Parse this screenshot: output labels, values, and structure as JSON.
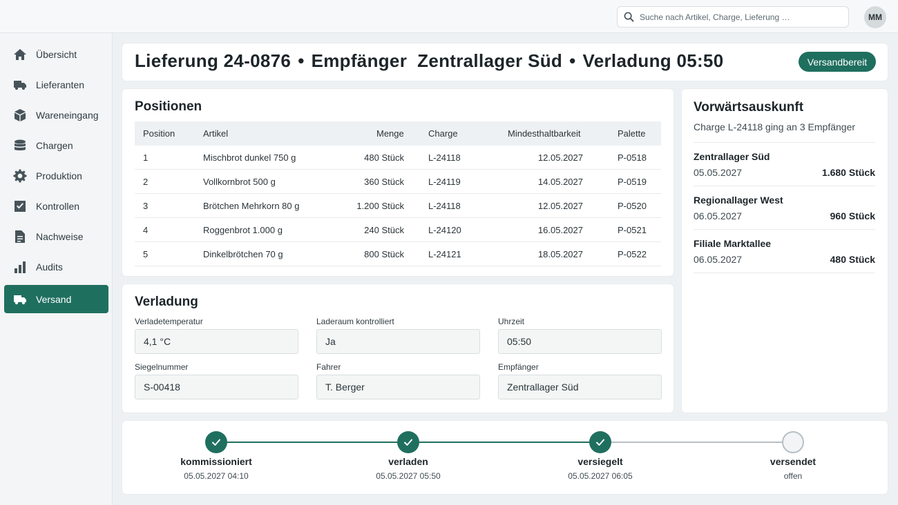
{
  "search": {
    "placeholder": "Suche nach Artikel, Charge, Lieferung …"
  },
  "user": {
    "initials": "MM"
  },
  "sidebar": {
    "items": [
      {
        "label": "Übersicht",
        "icon": "home-icon"
      },
      {
        "label": "Lieferanten",
        "icon": "truck-icon"
      },
      {
        "label": "Wareneingang",
        "icon": "box-icon"
      },
      {
        "label": "Chargen",
        "icon": "database-icon"
      },
      {
        "label": "Produktion",
        "icon": "gear-icon"
      },
      {
        "label": "Kontrollen",
        "icon": "checkbox-icon"
      },
      {
        "label": "Nachweise",
        "icon": "document-icon"
      },
      {
        "label": "Audits",
        "icon": "bar-chart-icon"
      },
      {
        "label": "Versand",
        "icon": "truck-icon",
        "active": true
      }
    ]
  },
  "header": {
    "part1": "Lieferung 24-0876",
    "part2": "Empfänger  Zentrallager Süd",
    "part3": "Verladung 05:50",
    "separator": "•",
    "status": "Versandbereit"
  },
  "positions": {
    "title": "Positionen",
    "columns": [
      "Position",
      "Artikel",
      "Menge",
      "Charge",
      "Mindesthaltbarkeit",
      "Palette"
    ],
    "rows": [
      [
        "1",
        "Mischbrot dunkel 750 g",
        "480 Stück",
        "L-24118",
        "12.05.2027",
        "P-0518"
      ],
      [
        "2",
        "Vollkornbrot 500 g",
        "360 Stück",
        "L-24119",
        "14.05.2027",
        "P-0519"
      ],
      [
        "3",
        "Brötchen Mehrkorn 80 g",
        "1.200 Stück",
        "L-24118",
        "12.05.2027",
        "P-0520"
      ],
      [
        "4",
        "Roggenbrot 1.000 g",
        "240 Stück",
        "L-24120",
        "16.05.2027",
        "P-0521"
      ],
      [
        "5",
        "Dinkelbrötchen 70 g",
        "800 Stück",
        "L-24121",
        "18.05.2027",
        "P-0522"
      ]
    ]
  },
  "loading": {
    "title": "Verladung",
    "fields": [
      {
        "label": "Verladetemperatur",
        "value": "4,1 °C"
      },
      {
        "label": "Laderaum kontrolliert",
        "value": "Ja"
      },
      {
        "label": "Uhrzeit",
        "value": "05:50"
      },
      {
        "label": "Siegelnummer",
        "value": "S-00418"
      },
      {
        "label": "Fahrer",
        "value": "T. Berger"
      },
      {
        "label": "Empfänger",
        "value": "Zentrallager Süd"
      }
    ]
  },
  "forward": {
    "title": "Vorwärtsauskunft",
    "subtitle": "Charge L-24118 ging an 3 Empfänger",
    "entries": [
      {
        "name": "Zentrallager Süd",
        "date": "05.05.2027",
        "qty": "1.680 Stück"
      },
      {
        "name": "Regionallager West",
        "date": "06.05.2027",
        "qty": "960 Stück"
      },
      {
        "name": "Filiale Marktallee",
        "date": "06.05.2027",
        "qty": "480 Stück"
      }
    ]
  },
  "timeline": {
    "steps": [
      {
        "label": "kommissioniert",
        "date": "05.05.2027 04:10",
        "done": true
      },
      {
        "label": "verladen",
        "date": "05.05.2027 05:50",
        "done": true
      },
      {
        "label": "versiegelt",
        "date": "05.05.2027 06:05",
        "done": true
      },
      {
        "label": "versendet",
        "date": "offen",
        "done": false
      }
    ]
  },
  "colors": {
    "accent": "#1f6f5f",
    "pending": "#b7bfc4"
  }
}
